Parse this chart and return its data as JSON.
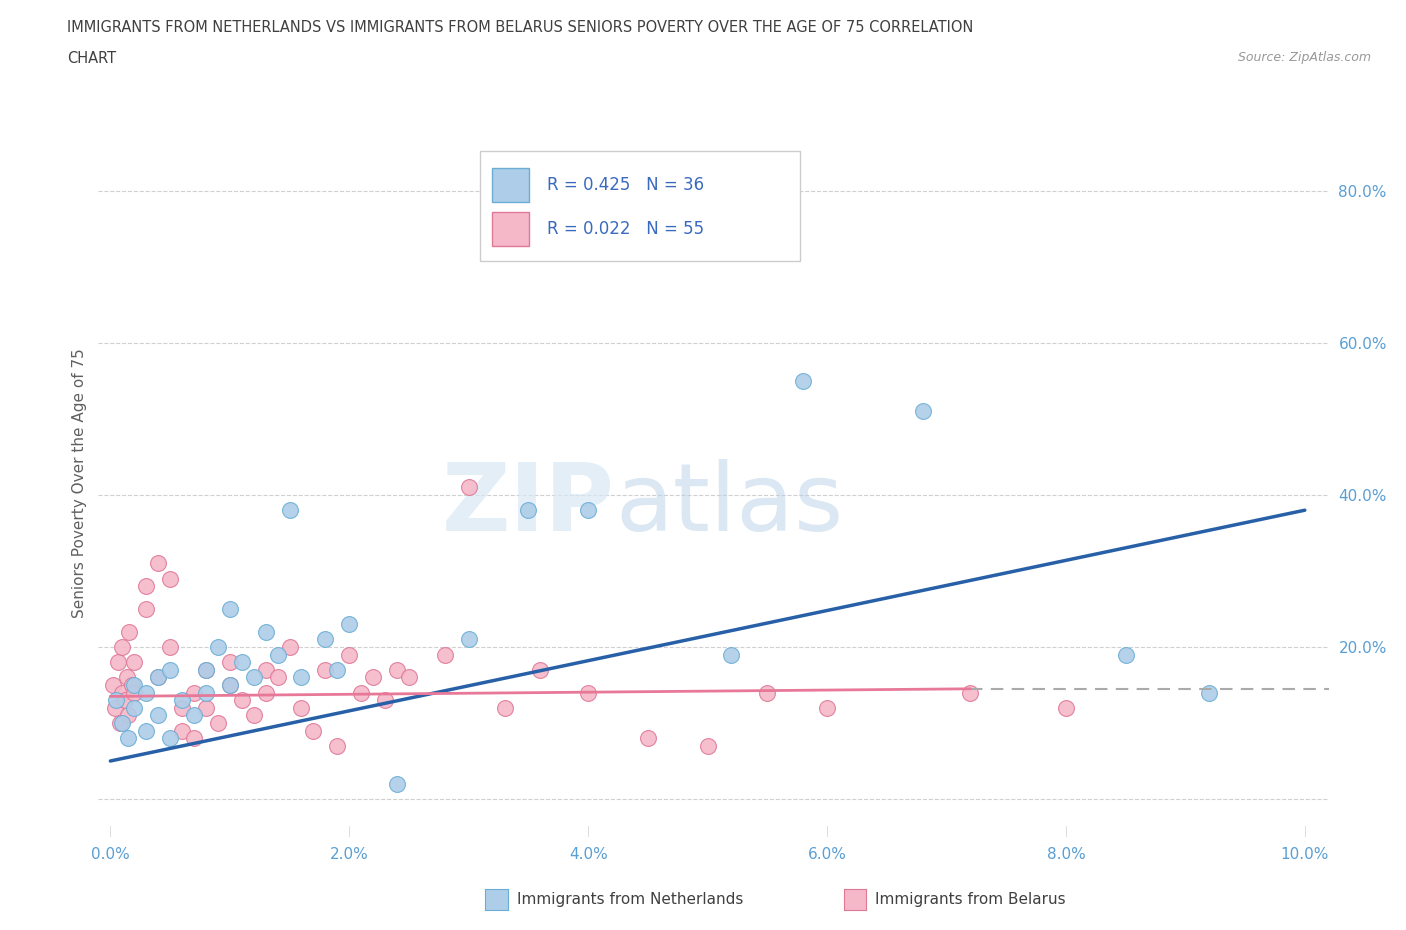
{
  "title_line1": "IMMIGRANTS FROM NETHERLANDS VS IMMIGRANTS FROM BELARUS SENIORS POVERTY OVER THE AGE OF 75 CORRELATION",
  "title_line2": "CHART",
  "source": "Source: ZipAtlas.com",
  "ylabel": "Seniors Poverty Over the Age of 75",
  "xlim": [
    -0.001,
    0.102
  ],
  "ylim": [
    -0.05,
    0.88
  ],
  "xticks": [
    0.0,
    0.02,
    0.04,
    0.06,
    0.08,
    0.1
  ],
  "xticklabels": [
    "0.0%",
    "2.0%",
    "4.0%",
    "6.0%",
    "8.0%",
    "10.0%"
  ],
  "yticks_right": [
    0.0,
    0.2,
    0.4,
    0.6,
    0.8
  ],
  "yticklabels_right": [
    "",
    "20.0%",
    "40.0%",
    "60.0%",
    "80.0%"
  ],
  "watermark_zip": "ZIP",
  "watermark_atlas": "atlas",
  "netherlands_color": "#aecde8",
  "belarus_color": "#f4b8c8",
  "netherlands_edge": "#6aaed6",
  "belarus_edge": "#e07898",
  "trend_netherlands_color": "#2860a8",
  "trend_belarus_color": "#e87898",
  "R_netherlands": 0.425,
  "N_netherlands": 36,
  "R_belarus": 0.022,
  "N_belarus": 55,
  "netherlands_x": [
    0.0005,
    0.001,
    0.0015,
    0.002,
    0.002,
    0.003,
    0.003,
    0.004,
    0.004,
    0.005,
    0.005,
    0.006,
    0.007,
    0.008,
    0.008,
    0.009,
    0.01,
    0.01,
    0.011,
    0.012,
    0.013,
    0.014,
    0.015,
    0.016,
    0.018,
    0.019,
    0.02,
    0.024,
    0.03,
    0.035,
    0.04,
    0.052,
    0.058,
    0.068,
    0.085,
    0.092
  ],
  "netherlands_y": [
    0.13,
    0.1,
    0.08,
    0.12,
    0.15,
    0.09,
    0.14,
    0.11,
    0.16,
    0.08,
    0.17,
    0.13,
    0.11,
    0.14,
    0.17,
    0.2,
    0.15,
    0.25,
    0.18,
    0.16,
    0.22,
    0.19,
    0.38,
    0.16,
    0.21,
    0.17,
    0.23,
    0.02,
    0.21,
    0.38,
    0.38,
    0.19,
    0.55,
    0.51,
    0.19,
    0.14
  ],
  "netherlands_trend_x": [
    0.0,
    0.1
  ],
  "netherlands_trend_y": [
    0.05,
    0.38
  ],
  "belarus_x": [
    0.0002,
    0.0004,
    0.0006,
    0.0008,
    0.001,
    0.001,
    0.0012,
    0.0014,
    0.0015,
    0.0016,
    0.0018,
    0.002,
    0.002,
    0.003,
    0.003,
    0.004,
    0.004,
    0.005,
    0.005,
    0.006,
    0.006,
    0.007,
    0.007,
    0.008,
    0.008,
    0.009,
    0.01,
    0.01,
    0.011,
    0.012,
    0.013,
    0.013,
    0.014,
    0.015,
    0.016,
    0.017,
    0.018,
    0.019,
    0.02,
    0.021,
    0.022,
    0.023,
    0.024,
    0.025,
    0.028,
    0.03,
    0.033,
    0.036,
    0.04,
    0.045,
    0.05,
    0.055,
    0.06,
    0.072,
    0.08
  ],
  "belarus_y": [
    0.15,
    0.12,
    0.18,
    0.1,
    0.14,
    0.2,
    0.13,
    0.16,
    0.11,
    0.22,
    0.15,
    0.14,
    0.18,
    0.28,
    0.25,
    0.31,
    0.16,
    0.29,
    0.2,
    0.09,
    0.12,
    0.08,
    0.14,
    0.12,
    0.17,
    0.1,
    0.15,
    0.18,
    0.13,
    0.11,
    0.17,
    0.14,
    0.16,
    0.2,
    0.12,
    0.09,
    0.17,
    0.07,
    0.19,
    0.14,
    0.16,
    0.13,
    0.17,
    0.16,
    0.19,
    0.41,
    0.12,
    0.17,
    0.14,
    0.08,
    0.07,
    0.14,
    0.12,
    0.14,
    0.12
  ],
  "belarus_trend_x": [
    0.0,
    0.072
  ],
  "belarus_trend_y": [
    0.135,
    0.145
  ],
  "ref_line_x": [
    0.072,
    0.102
  ],
  "ref_line_y": [
    0.145,
    0.145
  ],
  "grid_color": "#d0d0d0",
  "background_color": "#ffffff",
  "legend_text_color": "#3a6abf",
  "title_color": "#404040",
  "axis_color": "#5a9fd4",
  "axis_label_color": "#606060"
}
